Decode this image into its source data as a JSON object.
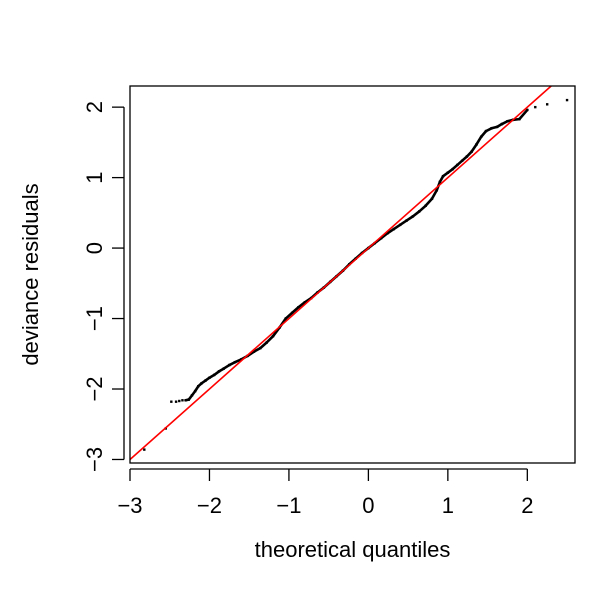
{
  "chart_data": {
    "type": "scatter",
    "title": "",
    "xlabel": "theoretical quantiles",
    "ylabel": "deviance residuals",
    "xlim": [
      -3.0,
      2.6
    ],
    "ylim": [
      -3.05,
      2.3
    ],
    "xticks": [
      {
        "value": -3,
        "label": "−3"
      },
      {
        "value": -2,
        "label": "−2"
      },
      {
        "value": -1,
        "label": "−1"
      },
      {
        "value": 0,
        "label": "0"
      },
      {
        "value": 1,
        "label": "1"
      },
      {
        "value": 2,
        "label": "2"
      }
    ],
    "yticks": [
      {
        "value": -3,
        "label": "−3"
      },
      {
        "value": -2,
        "label": "−2"
      },
      {
        "value": -1,
        "label": "−1"
      },
      {
        "value": 0,
        "label": "0"
      },
      {
        "value": 1,
        "label": "1"
      },
      {
        "value": 2,
        "label": "2"
      }
    ],
    "grid": false,
    "reference_line": {
      "intercept": 0.0,
      "slope": 1.0,
      "color": "#ff0000"
    },
    "point_color": "#000000",
    "points": [
      [
        -2.82,
        -2.86
      ],
      [
        -2.55,
        -2.56
      ],
      [
        -2.48,
        -2.18
      ],
      [
        -2.42,
        -2.18
      ],
      [
        -2.38,
        -2.17
      ],
      [
        -2.34,
        -2.16
      ],
      [
        -2.3,
        -2.16
      ],
      [
        -2.26,
        -2.15
      ],
      [
        -2.22,
        -2.09
      ],
      [
        -2.18,
        -2.03
      ],
      [
        -2.14,
        -1.96
      ],
      [
        -2.1,
        -1.92
      ],
      [
        -2.05,
        -1.88
      ],
      [
        -2.0,
        -1.84
      ],
      [
        -1.94,
        -1.8
      ],
      [
        -1.88,
        -1.75
      ],
      [
        -1.82,
        -1.71
      ],
      [
        -1.75,
        -1.66
      ],
      [
        -1.68,
        -1.62
      ],
      [
        -1.6,
        -1.58
      ],
      [
        -1.52,
        -1.53
      ],
      [
        -1.44,
        -1.47
      ],
      [
        -1.36,
        -1.42
      ],
      [
        -1.28,
        -1.34
      ],
      [
        -1.2,
        -1.25
      ],
      [
        -1.12,
        -1.13
      ],
      [
        -1.04,
        -1.0
      ],
      [
        -0.96,
        -0.92
      ],
      [
        -0.88,
        -0.84
      ],
      [
        -0.8,
        -0.77
      ],
      [
        -0.72,
        -0.71
      ],
      [
        -0.64,
        -0.63
      ],
      [
        -0.56,
        -0.56
      ],
      [
        -0.48,
        -0.48
      ],
      [
        -0.4,
        -0.4
      ],
      [
        -0.32,
        -0.32
      ],
      [
        -0.24,
        -0.23
      ],
      [
        -0.16,
        -0.15
      ],
      [
        -0.08,
        -0.07
      ],
      [
        0.0,
        0.0
      ],
      [
        0.08,
        0.07
      ],
      [
        0.16,
        0.14
      ],
      [
        0.24,
        0.21
      ],
      [
        0.32,
        0.27
      ],
      [
        0.4,
        0.33
      ],
      [
        0.48,
        0.39
      ],
      [
        0.56,
        0.45
      ],
      [
        0.64,
        0.52
      ],
      [
        0.72,
        0.6
      ],
      [
        0.8,
        0.7
      ],
      [
        0.86,
        0.82
      ],
      [
        0.9,
        0.94
      ],
      [
        0.94,
        1.02
      ],
      [
        1.0,
        1.07
      ],
      [
        1.06,
        1.12
      ],
      [
        1.12,
        1.18
      ],
      [
        1.18,
        1.24
      ],
      [
        1.24,
        1.3
      ],
      [
        1.3,
        1.37
      ],
      [
        1.36,
        1.47
      ],
      [
        1.42,
        1.58
      ],
      [
        1.48,
        1.66
      ],
      [
        1.55,
        1.7
      ],
      [
        1.62,
        1.72
      ],
      [
        1.68,
        1.76
      ],
      [
        1.75,
        1.8
      ],
      [
        1.82,
        1.82
      ],
      [
        1.9,
        1.83
      ],
      [
        2.0,
        1.96
      ],
      [
        2.1,
        2.0
      ],
      [
        2.25,
        2.04
      ],
      [
        2.5,
        2.1
      ]
    ]
  }
}
